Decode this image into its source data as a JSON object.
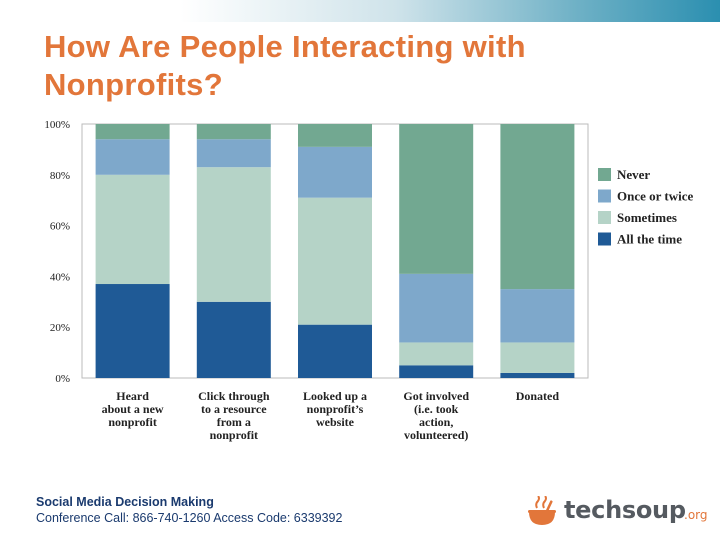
{
  "slide": {
    "title_line1": "How Are People Interacting with",
    "title_line2": "Nonprofits?"
  },
  "footer": {
    "line1": "Social Media Decision Making",
    "line2": "Conference Call: 866-740-1260 Access Code: 6339392"
  },
  "logo": {
    "word": "techsoup",
    "suffix": ".org"
  },
  "chart_data": {
    "type": "bar",
    "stacked": true,
    "ylim": [
      0,
      100
    ],
    "yticks": [
      "0%",
      "20%",
      "40%",
      "60%",
      "80%",
      "100%"
    ],
    "categories": [
      [
        "Heard",
        "about a new",
        "nonprofit"
      ],
      [
        "Click through",
        "to a resource",
        "from a",
        "nonprofit"
      ],
      [
        "Looked up a",
        "nonprofit’s",
        "website"
      ],
      [
        "Got involved",
        "(i.e. took",
        "action,",
        "volunteered)"
      ],
      [
        "Donated"
      ]
    ],
    "series": [
      {
        "name": "All the time",
        "color": "#1f5a96",
        "values": [
          37,
          30,
          21,
          5,
          2
        ]
      },
      {
        "name": "Sometimes",
        "color": "#b5d3c7",
        "values": [
          43,
          53,
          50,
          9,
          12
        ]
      },
      {
        "name": "Once or twice",
        "color": "#7ea8cb",
        "values": [
          14,
          11,
          20,
          27,
          21
        ]
      },
      {
        "name": "Never",
        "color": "#72a891",
        "values": [
          6,
          6,
          9,
          59,
          65
        ]
      }
    ],
    "legend": {
      "placement": "right",
      "order": [
        "Never",
        "Once or twice",
        "Sometimes",
        "All the time"
      ]
    },
    "grid": false
  }
}
